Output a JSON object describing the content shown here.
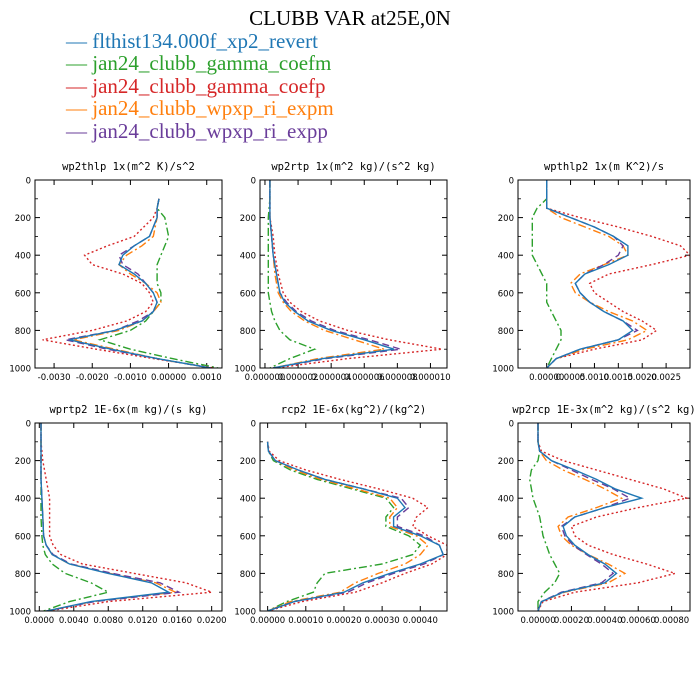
{
  "title": "CLUBB VAR at25E,0N",
  "legend": [
    {
      "label": "flthist134.000f_xp2_revert",
      "color": "#1f77b4",
      "dash": "solid"
    },
    {
      "label": "jan24_clubb_gamma_coefm",
      "color": "#2ca02c",
      "dash": "dashdot"
    },
    {
      "label": "jan24_clubb_gamma_coefp",
      "color": "#d62728",
      "dash": "dotted"
    },
    {
      "label": "jan24_clubb_wpxp_ri_expm",
      "color": "#ff7f0e",
      "dash": "dashdot"
    },
    {
      "label": "jan24_clubb_wpxp_ri_expp",
      "color": "#6a3d9a",
      "dash": "dashed"
    }
  ],
  "chart_data": [
    {
      "type": "line",
      "title": "wp2thlp  1x(m^2 K)/s^2",
      "xlim": [
        -0.0035,
        0.0014
      ],
      "ylim": [
        1000,
        0
      ],
      "xticks": [
        -0.003,
        -0.002,
        -0.001,
        0,
        0.001
      ],
      "xtick_labels": [
        "-0.0030",
        "-0.0020",
        "-0.0010",
        "0.00000",
        "0.0010"
      ],
      "yticks": [
        0,
        200,
        400,
        600,
        800,
        1000
      ],
      "y": [
        100,
        150,
        200,
        300,
        350,
        400,
        450,
        500,
        550,
        600,
        650,
        700,
        750,
        800,
        850,
        900,
        950,
        1000
      ],
      "series": [
        {
          "values": [
            -0.00025,
            -0.0003,
            -0.0003,
            -0.0005,
            -0.0009,
            -0.0012,
            -0.0013,
            -0.0009,
            -0.0006,
            -0.0004,
            -0.0003,
            -0.0004,
            -0.0007,
            -0.0014,
            -0.0026,
            -0.0015,
            -0.0003,
            0.0011
          ]
        },
        {
          "values": [
            -0.00025,
            -0.0003,
            -0.0001,
            0.0,
            -0.0001,
            -0.0002,
            -0.0003,
            -0.0003,
            -0.0003,
            -0.0002,
            -0.0002,
            -0.0004,
            -0.0006,
            -0.001,
            -0.0018,
            -0.001,
            0.0001,
            0.0013
          ]
        },
        {
          "values": [
            -0.00025,
            -0.0003,
            -0.0004,
            -0.0009,
            -0.0016,
            -0.0022,
            -0.002,
            -0.0012,
            -0.0007,
            -0.0005,
            -0.0004,
            -0.0006,
            -0.0011,
            -0.002,
            -0.0033,
            -0.0019,
            -0.0004,
            0.0012
          ]
        },
        {
          "values": [
            -0.00025,
            -0.0003,
            -0.0003,
            -0.0004,
            -0.0007,
            -0.0011,
            -0.0013,
            -0.001,
            -0.0006,
            -0.0003,
            -0.0002,
            -0.0004,
            -0.0007,
            -0.0013,
            -0.0025,
            -0.0014,
            -0.0003,
            0.0011
          ]
        },
        {
          "values": [
            -0.00025,
            -0.0003,
            -0.0003,
            -0.0005,
            -0.0009,
            -0.0013,
            -0.0012,
            -0.0008,
            -0.0006,
            -0.0004,
            -0.0003,
            -0.0004,
            -0.0008,
            -0.0014,
            -0.0027,
            -0.0016,
            -0.0003,
            0.0011
          ]
        }
      ]
    },
    {
      "type": "line",
      "title": "wp2rtp  1x(m^2 kg)/(s^2 kg)",
      "xlim": [
        -3e-07,
        1.1e-05
      ],
      "ylim": [
        1000,
        0
      ],
      "xticks": [
        0,
        2e-06,
        4e-06,
        6e-06,
        8e-06,
        1e-05
      ],
      "xtick_labels": [
        "0.000000",
        "0.000002",
        "0.000004",
        "0.000006",
        "0.000008",
        "0.000010"
      ],
      "yticks": [
        0,
        200,
        400,
        600,
        800,
        1000
      ],
      "y": [
        0,
        100,
        200,
        300,
        400,
        500,
        600,
        650,
        700,
        750,
        800,
        850,
        900,
        950,
        1000
      ],
      "series": [
        {
          "values": [
            3e-07,
            3e-07,
            3e-07,
            4e-07,
            5e-07,
            7e-07,
            9e-07,
            1.2e-06,
            1.8e-06,
            2.6e-06,
            4e-06,
            6e-06,
            7.8e-06,
            3.5e-06,
            5e-07
          ]
        },
        {
          "values": [
            3e-07,
            3e-07,
            2e-07,
            2e-07,
            2e-07,
            2e-07,
            2e-07,
            3e-07,
            4e-07,
            6e-07,
            9e-07,
            1.5e-06,
            3e-06,
            1.5e-06,
            3e-07
          ]
        },
        {
          "values": [
            3e-07,
            3e-07,
            3e-07,
            5e-07,
            6e-07,
            8e-07,
            1.1e-06,
            1.5e-06,
            2.2e-06,
            3.3e-06,
            5e-06,
            7.5e-06,
            1.07e-05,
            5e-06,
            6e-07
          ]
        },
        {
          "values": [
            3e-07,
            3e-07,
            3e-07,
            4e-07,
            5e-07,
            6e-07,
            8e-07,
            1.1e-06,
            1.6e-06,
            2.4e-06,
            3.6e-06,
            5.4e-06,
            7.2e-06,
            3.2e-06,
            5e-07
          ]
        },
        {
          "values": [
            3e-07,
            3e-07,
            3e-07,
            4e-07,
            5e-07,
            7e-07,
            9e-07,
            1.3e-06,
            1.9e-06,
            2.8e-06,
            4.2e-06,
            6.3e-06,
            8.2e-06,
            3.7e-06,
            5e-07
          ]
        }
      ]
    },
    {
      "type": "line",
      "title": "wpthlp2  1x(m K^2)/s",
      "xlim": [
        -0.0006,
        0.003
      ],
      "ylim": [
        1000,
        0
      ],
      "xticks": [
        0,
        0.0005,
        0.001,
        0.0015,
        0.002,
        0.0025
      ],
      "xtick_labels": [
        "0.00000",
        "0.0005",
        "0.0010",
        "0.0015",
        "0.0020",
        "0.0025"
      ],
      "yticks": [
        0,
        200,
        400,
        600,
        800,
        1000
      ],
      "y": [
        0,
        100,
        150,
        200,
        250,
        300,
        350,
        400,
        450,
        500,
        550,
        600,
        650,
        700,
        750,
        800,
        850,
        900,
        950,
        1000
      ],
      "series": [
        {
          "values": [
            0.0,
            0.0,
            0.0,
            0.0005,
            0.001,
            0.0014,
            0.0017,
            0.0017,
            0.0013,
            0.0008,
            0.0006,
            0.0007,
            0.0009,
            0.0012,
            0.0016,
            0.0018,
            0.0015,
            0.0007,
            0.0002,
            0.0
          ]
        },
        {
          "values": [
            0.0,
            0.0,
            -0.0002,
            -0.0003,
            -0.0003,
            -0.0003,
            -0.0003,
            -0.0003,
            -0.0002,
            -0.0001,
            0.0,
            0.0,
            0.0,
            0.0001,
            0.0002,
            0.0003,
            0.0003,
            0.0002,
            0.0001,
            0.0
          ]
        },
        {
          "values": [
            0.0,
            0.0,
            0.0,
            0.0007,
            0.0015,
            0.0022,
            0.0028,
            0.003,
            0.0022,
            0.0013,
            0.0009,
            0.001,
            0.0013,
            0.0016,
            0.002,
            0.0023,
            0.002,
            0.001,
            0.0002,
            0.0
          ]
        },
        {
          "values": [
            0.0,
            0.0,
            0.0,
            0.0003,
            0.0008,
            0.0013,
            0.0016,
            0.0017,
            0.0012,
            0.0007,
            0.0005,
            0.0006,
            0.0009,
            0.0013,
            0.0018,
            0.0021,
            0.0017,
            0.0008,
            0.0002,
            0.0
          ]
        },
        {
          "values": [
            0.0,
            0.0,
            0.0,
            0.0005,
            0.001,
            0.0014,
            0.0016,
            0.0015,
            0.0012,
            0.0008,
            0.0006,
            0.0007,
            0.0009,
            0.0012,
            0.0016,
            0.0019,
            0.0015,
            0.0007,
            0.0002,
            0.0
          ]
        }
      ]
    },
    {
      "type": "line",
      "title": "wprtp2  1E-6x(m kg)/(s kg)",
      "xlim": [
        -0.0005,
        0.0212
      ],
      "ylim": [
        1000,
        0
      ],
      "xticks": [
        0,
        0.004,
        0.008,
        0.012,
        0.016,
        0.02
      ],
      "xtick_labels": [
        "0.0000",
        "0.0040",
        "0.0080",
        "0.0120",
        "0.0160",
        "0.0200"
      ],
      "yticks": [
        0,
        200,
        400,
        600,
        800,
        1000
      ],
      "y": [
        0,
        100,
        200,
        300,
        400,
        500,
        600,
        650,
        700,
        750,
        800,
        850,
        900,
        950,
        1000
      ],
      "series": [
        {
          "values": [
            0.0002,
            0.0002,
            0.0002,
            0.0002,
            0.0003,
            0.0004,
            0.0005,
            0.0008,
            0.0015,
            0.0035,
            0.008,
            0.013,
            0.015,
            0.006,
            0.0008
          ]
        },
        {
          "values": [
            0.0002,
            0.0002,
            0.0002,
            0.0002,
            0.0002,
            0.0002,
            0.0003,
            0.0004,
            0.0007,
            0.0015,
            0.003,
            0.006,
            0.008,
            0.0035,
            0.0005
          ]
        },
        {
          "values": [
            0.0002,
            0.0002,
            0.0004,
            0.0008,
            0.0012,
            0.0012,
            0.0012,
            0.0016,
            0.0025,
            0.005,
            0.011,
            0.017,
            0.02,
            0.008,
            0.001
          ]
        },
        {
          "values": [
            0.0002,
            0.0002,
            0.0002,
            0.0002,
            0.0003,
            0.0004,
            0.0005,
            0.0008,
            0.0015,
            0.0035,
            0.0082,
            0.0135,
            0.0158,
            0.0062,
            0.0008
          ]
        },
        {
          "values": [
            0.0002,
            0.0002,
            0.0002,
            0.0002,
            0.0003,
            0.0004,
            0.0005,
            0.0008,
            0.0016,
            0.0037,
            0.0085,
            0.014,
            0.0162,
            0.0064,
            0.0008
          ]
        }
      ]
    },
    {
      "type": "line",
      "title": "rcp2  1E-6x(kg^2)/(kg^2)",
      "xlim": [
        -2e-05,
        0.00047
      ],
      "ylim": [
        1000,
        0
      ],
      "xticks": [
        0,
        0.0001,
        0.0002,
        0.0003,
        0.0004
      ],
      "xtick_labels": [
        "0.00000",
        "0.00010",
        "0.00020",
        "0.00030",
        "0.00040"
      ],
      "yticks": [
        0,
        200,
        400,
        600,
        800,
        1000
      ],
      "y": [
        100,
        150,
        200,
        250,
        300,
        350,
        400,
        450,
        500,
        550,
        600,
        650,
        700,
        750,
        800,
        850,
        900,
        950,
        1000
      ],
      "series": [
        {
          "values": [
            0.0,
            2e-06,
            2e-05,
            8e-05,
            0.00015,
            0.00025,
            0.00034,
            0.00036,
            0.00033,
            0.00033,
            0.0004,
            0.00045,
            0.00046,
            0.0004,
            0.00032,
            0.00025,
            0.0002,
            7e-05,
            0.0
          ]
        },
        {
          "values": [
            0.0,
            2e-06,
            1.5e-05,
            6e-05,
            0.00013,
            0.00022,
            0.00031,
            0.00033,
            0.00031,
            0.00031,
            0.00037,
            0.0004,
            0.00038,
            0.0003,
            0.00015,
            0.00013,
            0.00012,
            5e-05,
            0.0
          ]
        },
        {
          "values": [
            0.0,
            4e-06,
            3e-05,
            0.0001,
            0.00019,
            0.00029,
            0.00038,
            0.00042,
            0.00039,
            0.00038,
            0.00042,
            0.00047,
            0.00047,
            0.00043,
            0.00036,
            0.0003,
            0.00023,
            9e-05,
            0.0
          ]
        },
        {
          "values": [
            0.0,
            2e-06,
            2e-05,
            7e-05,
            0.00014,
            0.00023,
            0.00032,
            0.00034,
            0.00032,
            0.00032,
            0.00039,
            0.00042,
            0.0004,
            0.00036,
            0.00029,
            0.00023,
            0.00019,
            6e-05,
            0.0
          ]
        },
        {
          "values": [
            0.0,
            2e-06,
            2e-05,
            8e-05,
            0.00015,
            0.00025,
            0.00035,
            0.00037,
            0.00034,
            0.00034,
            0.00041,
            0.00045,
            0.00046,
            0.00041,
            0.00033,
            0.00026,
            0.00021,
            7e-05,
            0.0
          ]
        }
      ]
    },
    {
      "type": "line",
      "title": "wp2rcp  1E-3x(m^2 kg)/(s^2 kg)",
      "xlim": [
        -0.00012,
        0.00091
      ],
      "ylim": [
        1000,
        0
      ],
      "xticks": [
        0,
        0.0002,
        0.0004,
        0.0006,
        0.0008
      ],
      "xtick_labels": [
        "0.00000",
        "0.00020",
        "0.00040",
        "0.00060",
        "0.00080"
      ],
      "yticks": [
        0,
        200,
        400,
        600,
        800,
        1000
      ],
      "y": [
        0,
        100,
        150,
        200,
        250,
        300,
        350,
        400,
        450,
        500,
        550,
        600,
        650,
        700,
        750,
        800,
        850,
        900,
        950,
        1000
      ],
      "series": [
        {
          "values": [
            0.0,
            0.0,
            1e-05,
            8e-05,
            0.00022,
            0.00035,
            0.00046,
            0.00062,
            0.0004,
            0.00022,
            0.00015,
            0.00017,
            0.00022,
            0.0003,
            0.0004,
            0.00047,
            0.0004,
            0.00015,
            2e-05,
            0.0
          ]
        },
        {
          "values": [
            0.0,
            0.0,
            1e-05,
            0.0,
            -4e-05,
            -5e-05,
            -4e-05,
            -3e-05,
            -1e-05,
            1e-05,
            2e-05,
            3e-05,
            5e-05,
            7e-05,
            0.0001,
            0.00013,
            0.0001,
            4e-05,
            0.0,
            0.0
          ]
        },
        {
          "values": [
            0.0,
            0.0,
            2e-05,
            0.00015,
            0.00035,
            0.00055,
            0.00075,
            0.00089,
            0.0006,
            0.00035,
            0.0002,
            0.00022,
            0.0003,
            0.00045,
            0.00065,
            0.00082,
            0.0006,
            0.00022,
            3e-05,
            0.0
          ]
        },
        {
          "values": [
            0.0,
            0.0,
            1e-05,
            5e-05,
            0.00015,
            0.00028,
            0.0004,
            0.0005,
            0.00035,
            0.00018,
            0.00012,
            0.00014,
            0.0002,
            0.0003,
            0.00042,
            0.00052,
            0.00042,
            0.00016,
            2e-05,
            0.0
          ]
        },
        {
          "values": [
            0.0,
            0.0,
            1e-05,
            8e-05,
            0.0002,
            0.00032,
            0.00045,
            0.00055,
            0.0004,
            0.00022,
            0.00014,
            0.00016,
            0.00021,
            0.00029,
            0.00038,
            0.00045,
            0.00038,
            0.00014,
            2e-05,
            0.0
          ]
        }
      ]
    }
  ]
}
